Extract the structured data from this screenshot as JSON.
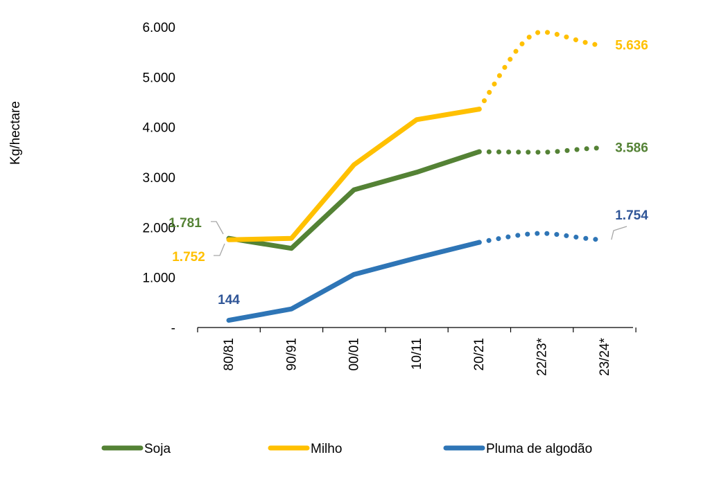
{
  "chart_data": {
    "type": "line",
    "ylabel": "Kg/hectare",
    "xlabel": "",
    "categories": [
      "80/81",
      "90/91",
      "00/01",
      "10/11",
      "20/21",
      "22/23*",
      "23/24*"
    ],
    "ylim": [
      0,
      6000
    ],
    "yticks": [
      0,
      1000,
      2000,
      3000,
      4000,
      5000,
      6000
    ],
    "ytick_labels": [
      "-",
      "1.000",
      "2.000",
      "3.000",
      "4.000",
      "5.000",
      "6.000"
    ],
    "projected_from_index": 4,
    "grid": false,
    "legend_position": "bottom",
    "series": [
      {
        "key": "soja",
        "name": "Soja",
        "color": "#548235",
        "values": [
          1781,
          1580,
          2750,
          3100,
          3510,
          3500,
          3586
        ],
        "labels": [
          {
            "index": 0,
            "text": "1.781"
          },
          {
            "index": 6,
            "text": "3.586"
          }
        ]
      },
      {
        "key": "milho",
        "name": "Milho",
        "color": "#FFC000",
        "values": [
          1752,
          1780,
          3250,
          4150,
          4360,
          5900,
          5636
        ],
        "labels": [
          {
            "index": 0,
            "text": "1.752"
          },
          {
            "index": 6,
            "text": "5.636"
          }
        ]
      },
      {
        "key": "algodao",
        "name": "Pluma de algodão",
        "color": "#2E75B6",
        "label_color": "#2F5597",
        "values": [
          144,
          370,
          1060,
          1390,
          1700,
          1880,
          1754
        ],
        "labels": [
          {
            "index": 0,
            "text": "144"
          },
          {
            "index": 6,
            "text": "1.754"
          }
        ]
      }
    ]
  }
}
